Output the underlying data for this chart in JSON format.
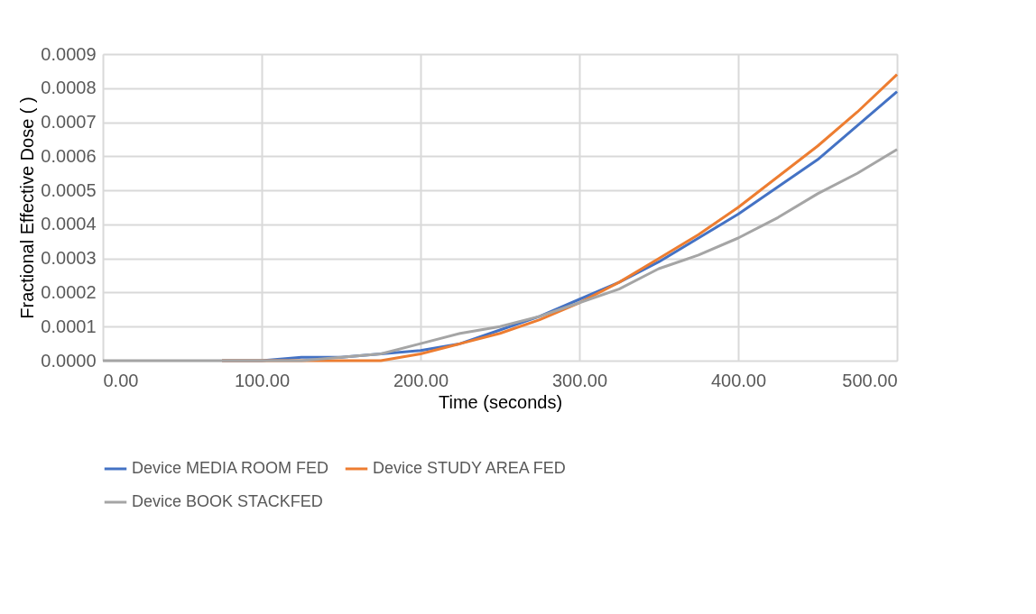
{
  "chart_data": {
    "type": "line",
    "xlabel": "Time (seconds)",
    "ylabel": "Fractional Effective Dose ( )",
    "x": [
      0,
      25,
      50,
      75,
      100,
      125,
      150,
      175,
      200,
      225,
      250,
      275,
      300,
      325,
      350,
      375,
      400,
      425,
      450,
      475,
      500
    ],
    "series": [
      {
        "name": "Device MEDIA ROOM FED",
        "color": "#4472c4",
        "values": [
          null,
          null,
          null,
          0,
          0,
          1e-05,
          1e-05,
          2e-05,
          3e-05,
          5e-05,
          9e-05,
          0.00013,
          0.00018,
          0.00023,
          0.00029,
          0.00036,
          0.00043,
          0.00051,
          0.00059,
          0.00069,
          0.00079
        ]
      },
      {
        "name": "Device STUDY AREA FED",
        "color": "#ed7d31",
        "values": [
          null,
          null,
          null,
          0,
          0,
          0,
          0,
          0,
          2e-05,
          5e-05,
          8e-05,
          0.00012,
          0.00017,
          0.00023,
          0.0003,
          0.00037,
          0.00045,
          0.00054,
          0.00063,
          0.00073,
          0.00084
        ]
      },
      {
        "name": "Device BOOK STACKFED",
        "color": "#a5a5a5",
        "values": [
          0,
          0,
          0,
          0,
          0,
          0,
          1e-05,
          2e-05,
          5e-05,
          8e-05,
          0.0001,
          0.00013,
          0.00017,
          0.00021,
          0.00027,
          0.00031,
          0.00036,
          0.00042,
          0.00049,
          0.00055,
          0.00062
        ]
      }
    ],
    "xlim": [
      0,
      500
    ],
    "xticks": [
      {
        "value": 0,
        "label": "0.00"
      },
      {
        "value": 100,
        "label": "100.00"
      },
      {
        "value": 200,
        "label": "200.00"
      },
      {
        "value": 300,
        "label": "300.00"
      },
      {
        "value": 400,
        "label": "400.00"
      },
      {
        "value": 500,
        "label": "500.00"
      }
    ],
    "ylim": [
      0,
      0.0009
    ],
    "yticks": [
      {
        "value": 0,
        "label": "0.0000"
      },
      0.0001,
      0.0002,
      0.0003,
      0.0004,
      0.0005,
      0.0006,
      0.0007,
      0.0008,
      0.0009
    ],
    "grid": true,
    "legend": "bottom",
    "line_style": "solid",
    "marker": "none"
  }
}
